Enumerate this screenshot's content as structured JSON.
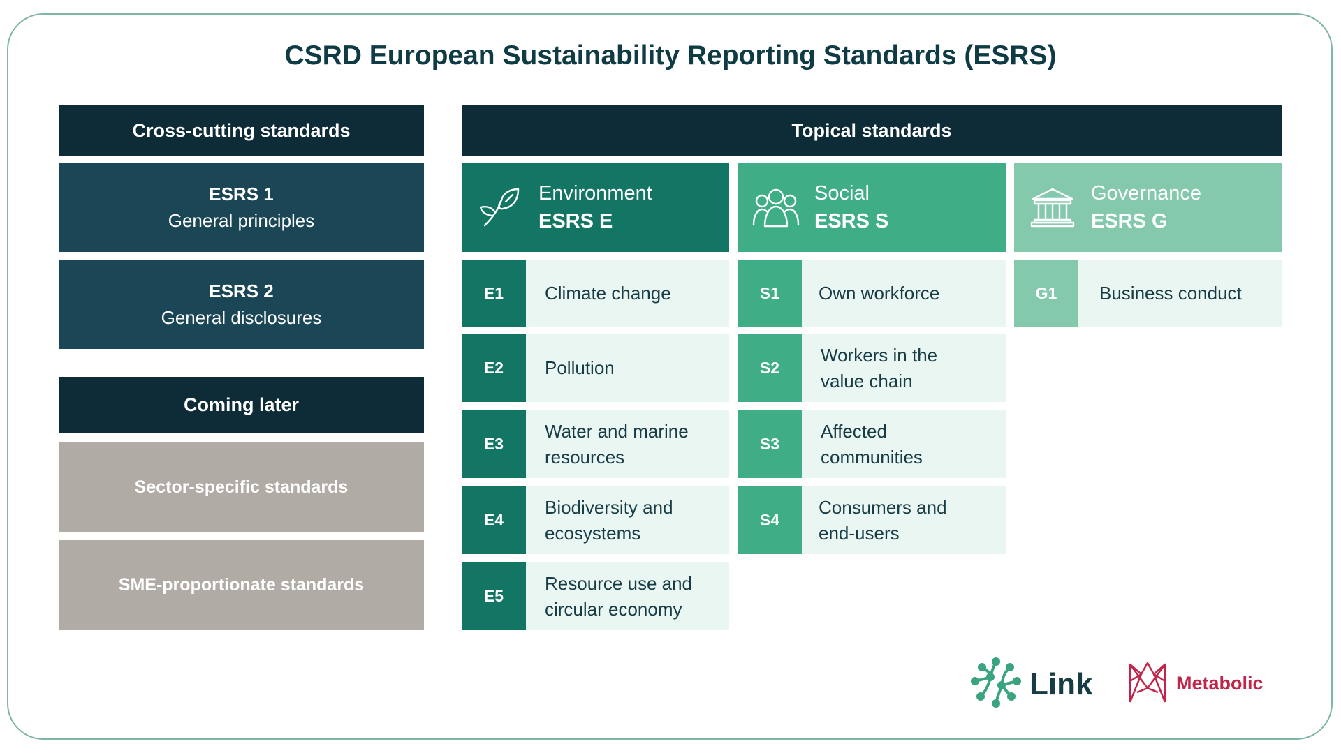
{
  "title": "CSRD European Sustainability Reporting Standards (ESRS)",
  "cross_cutting": {
    "header": "Cross-cutting standards",
    "items": [
      {
        "code": "ESRS 1",
        "label": "General principles"
      },
      {
        "code": "ESRS 2",
        "label": "General disclosures"
      }
    ]
  },
  "coming_later": {
    "header": "Coming later",
    "items": [
      "Sector-specific standards",
      "SME-proportionate standards"
    ]
  },
  "topical": {
    "header": "Topical standards",
    "columns": [
      {
        "name": "Environment",
        "code": "ESRS E",
        "icon": "leaf-icon",
        "color": "#137563",
        "items": [
          {
            "code": "E1",
            "label": "Climate change"
          },
          {
            "code": "E2",
            "label": "Pollution"
          },
          {
            "code": "E3",
            "label": "Water and marine resources"
          },
          {
            "code": "E4",
            "label": "Biodiversity and ecosystems"
          },
          {
            "code": "E5",
            "label": "Resource use and circular economy"
          }
        ]
      },
      {
        "name": "Social",
        "code": "ESRS S",
        "icon": "people-icon",
        "color": "#3fae87",
        "items": [
          {
            "code": "S1",
            "label": "Own workforce"
          },
          {
            "code": "S2",
            "label": "Workers in the value chain"
          },
          {
            "code": "S3",
            "label": "Affected communities"
          },
          {
            "code": "S4",
            "label": "Consumers and end-users"
          }
        ]
      },
      {
        "name": "Governance",
        "code": "ESRS G",
        "icon": "institution-icon",
        "color": "#85c9ad",
        "items": [
          {
            "code": "G1",
            "label": "Business conduct"
          }
        ]
      }
    ]
  },
  "logos": {
    "link": "Link",
    "metabolic": "Metabolic"
  }
}
